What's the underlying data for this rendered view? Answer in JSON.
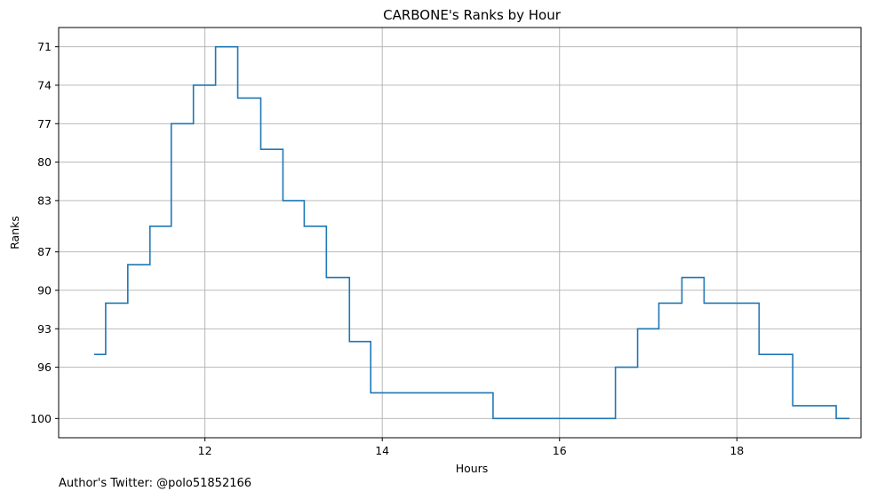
{
  "chart_data": {
    "type": "line",
    "drawstyle": "steps",
    "title": "CARBONE's Ranks by Hour",
    "xlabel": "Hours",
    "ylabel": "Ranks",
    "x_ticks": [
      12,
      14,
      16,
      18
    ],
    "x_tick_labels": [
      "12",
      "14",
      "16",
      "18"
    ],
    "y_ticks": [
      71,
      74,
      77,
      80,
      83,
      87,
      90,
      93,
      96,
      100
    ],
    "y_tick_labels": [
      "71",
      "74",
      "77",
      "80",
      "83",
      "87",
      "90",
      "93",
      "96",
      "100"
    ],
    "xlim": [
      10.35,
      19.4
    ],
    "ylim": [
      101.5,
      69.5
    ],
    "y_inverted": true,
    "grid": true,
    "line_color": "#1f77b4",
    "series": [
      {
        "x": [
          10.75,
          10.88,
          11.13,
          11.38,
          11.62,
          11.87,
          12.12,
          12.37,
          12.63,
          12.88,
          13.12,
          13.37,
          13.63,
          13.87,
          15.25,
          16.63,
          16.88,
          17.12,
          17.38,
          17.63,
          18.25,
          18.63,
          19.12,
          19.27
        ],
        "y": [
          95,
          91,
          88,
          85,
          77,
          74,
          71,
          75,
          79,
          83,
          85,
          89,
          94,
          98,
          100,
          96,
          93,
          91,
          89,
          91,
          95,
          99,
          100,
          100
        ]
      }
    ]
  },
  "footer": {
    "text": "Author's Twitter: @polo51852166"
  }
}
